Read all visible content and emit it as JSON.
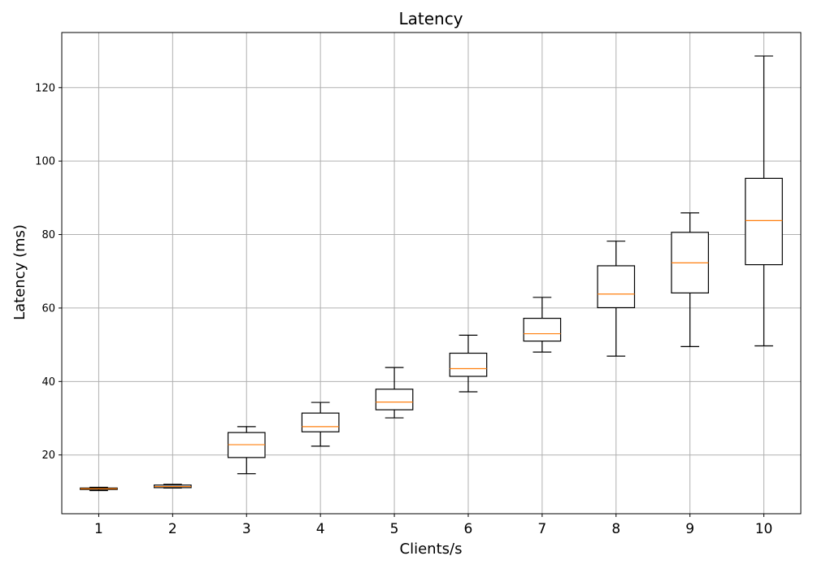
{
  "chart_data": {
    "type": "box",
    "title": "Latency",
    "xlabel": "Clients/s",
    "ylabel": "Latency (ms)",
    "ylim": [
      4,
      135
    ],
    "yticks": [
      20,
      40,
      60,
      80,
      100,
      120
    ],
    "grid": true,
    "colors": {
      "box": "#000000",
      "median": "#ff7f0e",
      "grid": "#b0b0b0"
    },
    "categories": [
      "1",
      "2",
      "3",
      "4",
      "5",
      "6",
      "7",
      "8",
      "9",
      "10"
    ],
    "boxes": [
      {
        "whislo": 10.3,
        "q1": 10.6,
        "med": 10.8,
        "q3": 11.0,
        "whishi": 11.2
      },
      {
        "whislo": 11.0,
        "q1": 11.1,
        "med": 11.4,
        "q3": 11.8,
        "whishi": 12.0
      },
      {
        "whislo": 14.9,
        "q1": 19.3,
        "med": 22.8,
        "q3": 26.1,
        "whishi": 27.7
      },
      {
        "whislo": 22.4,
        "q1": 26.3,
        "med": 27.7,
        "q3": 31.4,
        "whishi": 34.3
      },
      {
        "whislo": 30.1,
        "q1": 32.3,
        "med": 34.4,
        "q3": 37.9,
        "whishi": 43.8
      },
      {
        "whislo": 37.2,
        "q1": 41.4,
        "med": 43.5,
        "q3": 47.7,
        "whishi": 52.6
      },
      {
        "whislo": 48.0,
        "q1": 51.0,
        "med": 53.0,
        "q3": 57.2,
        "whishi": 62.9
      },
      {
        "whislo": 46.9,
        "q1": 60.1,
        "med": 63.8,
        "q3": 71.5,
        "whishi": 78.2
      },
      {
        "whislo": 49.5,
        "q1": 64.1,
        "med": 72.3,
        "q3": 80.6,
        "whishi": 85.9
      },
      {
        "whislo": 49.7,
        "q1": 71.8,
        "med": 83.8,
        "q3": 95.3,
        "whishi": 128.6
      }
    ]
  }
}
